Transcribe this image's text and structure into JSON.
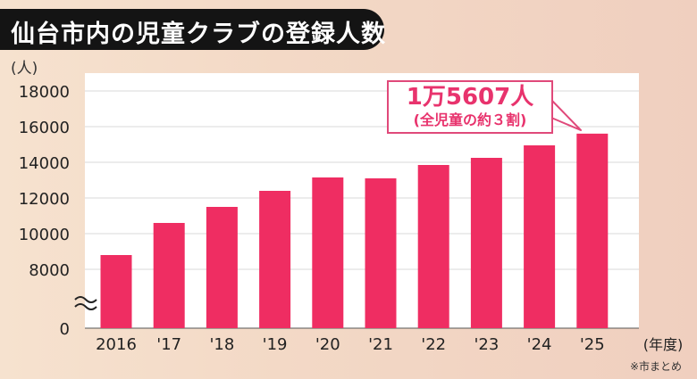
{
  "header": {
    "title": "仙台市内の児童クラブの登録人数",
    "unit": "(人)",
    "source": "※市まとめ"
  },
  "callout": {
    "main": "1万5607人",
    "sub": "(全児童の約３割)"
  },
  "colors": {
    "bar": "#ef2d62",
    "title_bg": "#141414",
    "callout": "#e8336d"
  },
  "chart_data": {
    "type": "bar",
    "title": "仙台市内の児童クラブの登録人数",
    "xlabel": "(年度)",
    "ylabel": "(人)",
    "categories": [
      "2016",
      "'17",
      "'18",
      "'19",
      "'20",
      "'21",
      "'22",
      "'23",
      "'24",
      "'25"
    ],
    "values": [
      8800,
      10600,
      11500,
      12400,
      13150,
      13100,
      13850,
      14250,
      14950,
      15607
    ],
    "y_ticks": [
      "18000",
      "16000",
      "14000",
      "12000",
      "10000",
      "8000",
      "0"
    ],
    "y_axis_break": true,
    "ylim": [
      0,
      18000
    ],
    "grid": true
  }
}
